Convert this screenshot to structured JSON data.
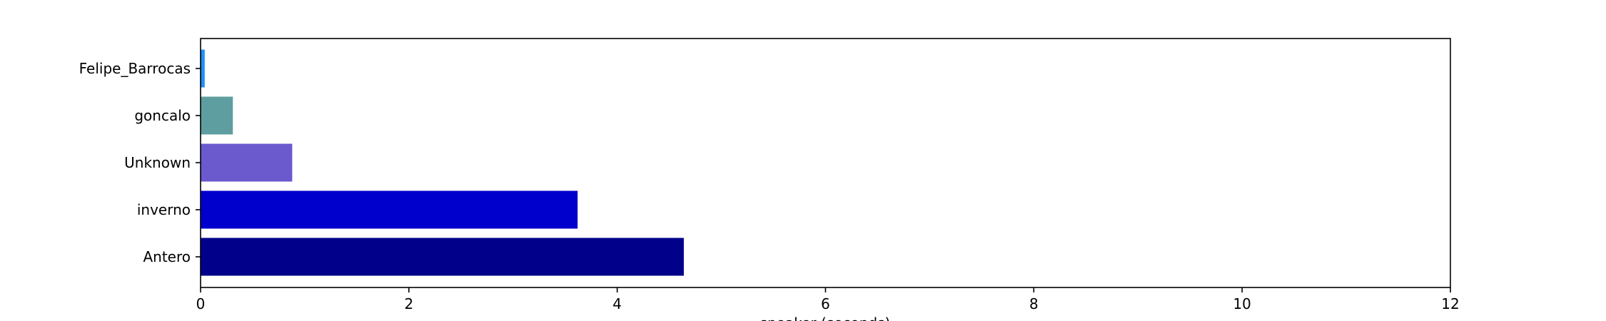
{
  "chart_data": {
    "type": "bar",
    "orientation": "horizontal",
    "categories": [
      "Antero",
      "inverno",
      "Unknown",
      "goncalo",
      "Felipe_Barrocas"
    ],
    "values": [
      4.64,
      3.62,
      0.88,
      0.31,
      0.04
    ],
    "colors": [
      "#00008b",
      "#0000cd",
      "#6a5acd",
      "#5f9ea0",
      "#1e90ff"
    ],
    "xlabel": "speaker (seconds)",
    "ylabel": "",
    "title": "",
    "xlim": [
      0,
      12
    ],
    "xticks": [
      0,
      2,
      4,
      6,
      8,
      10,
      12
    ],
    "grid": false,
    "legend": "none"
  }
}
